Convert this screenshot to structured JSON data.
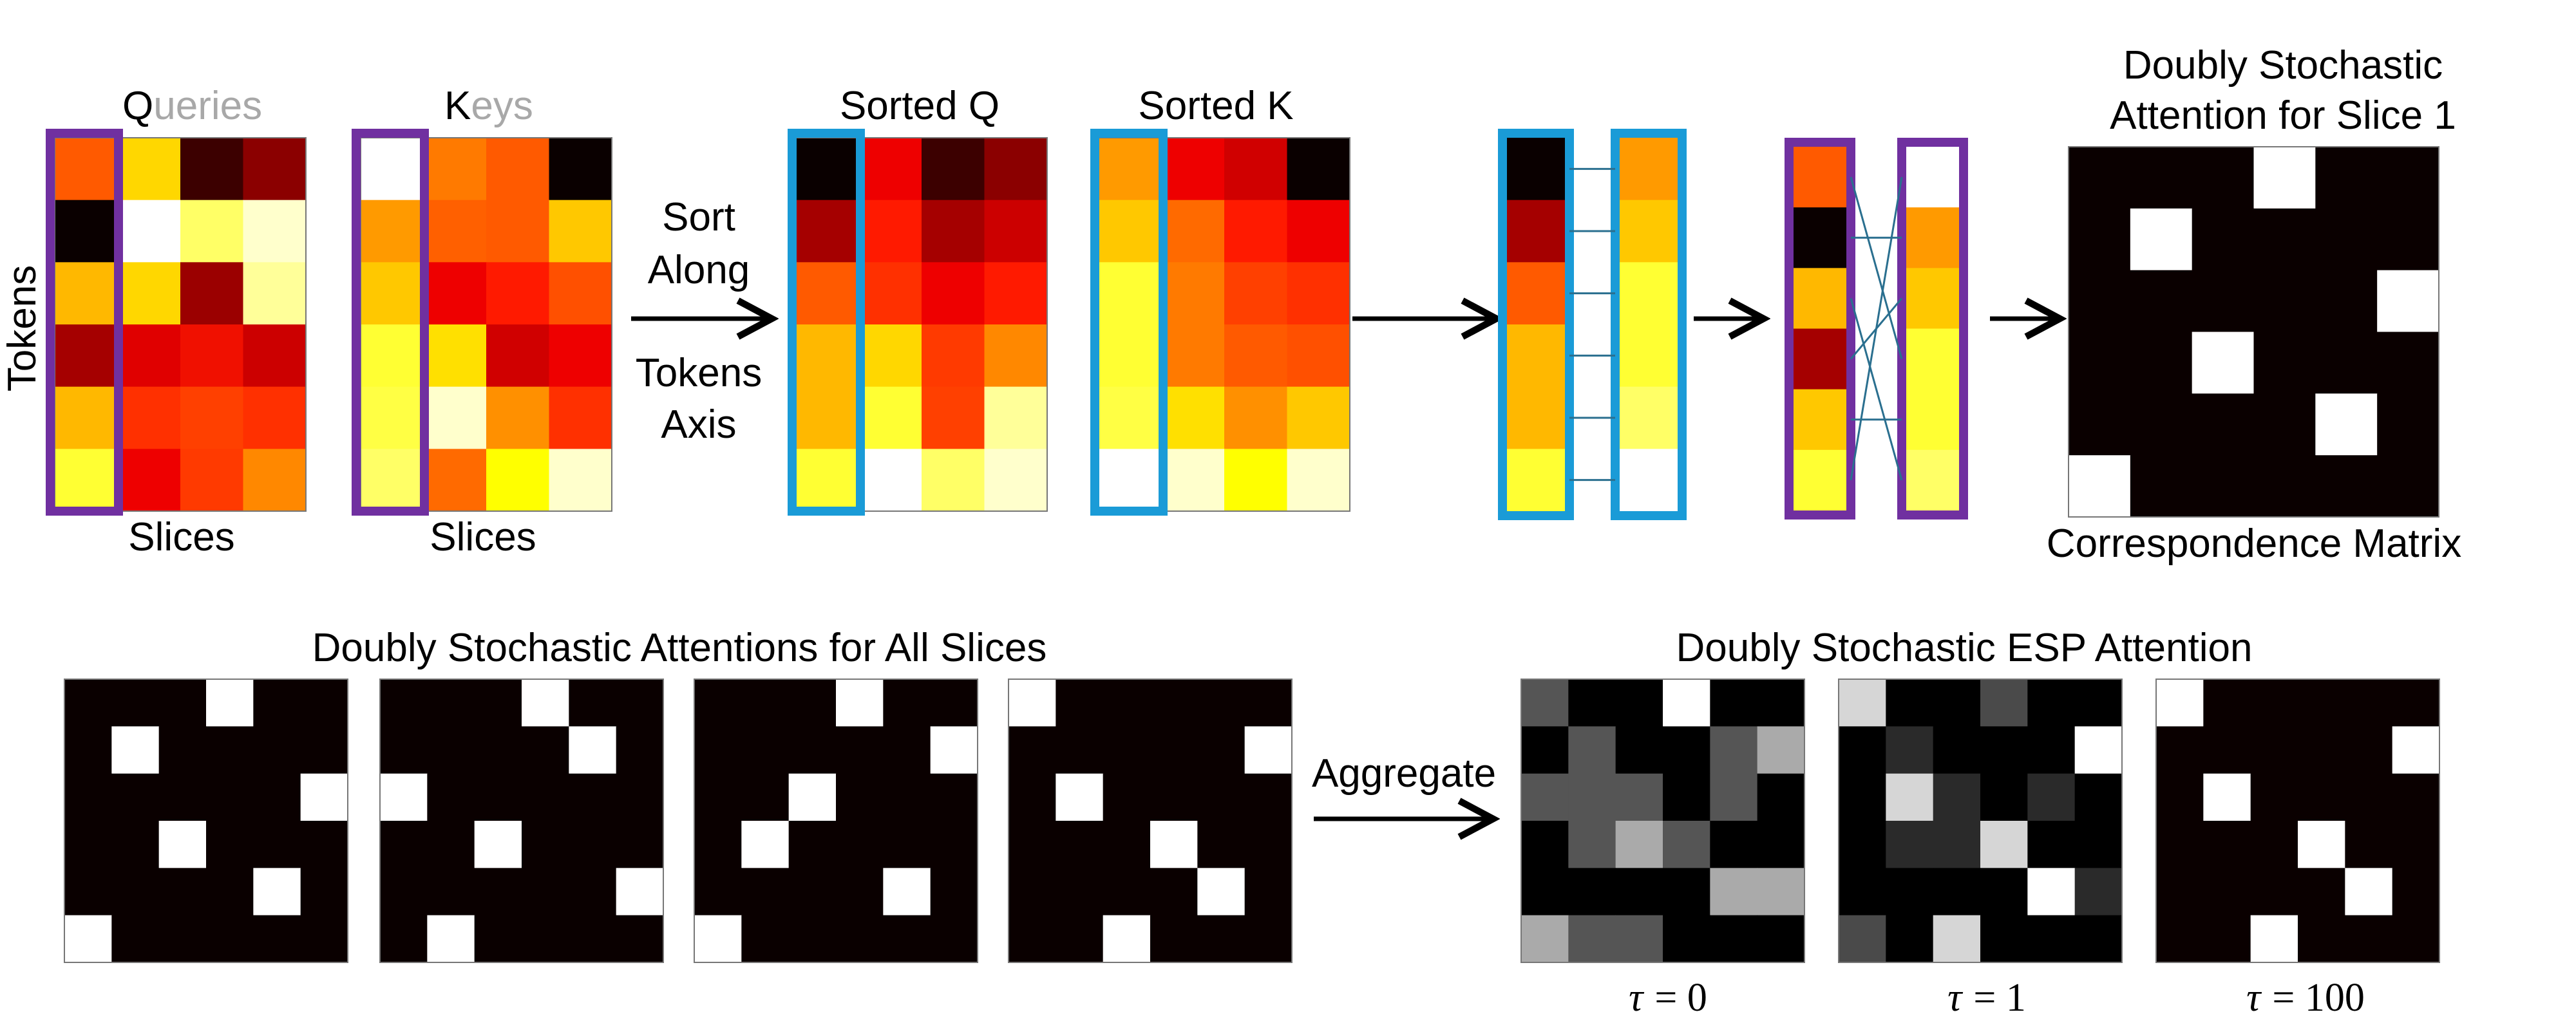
{
  "labels": {
    "queries_head": "Q",
    "queries_tail": "ueries",
    "keys_head": "K",
    "keys_tail": "eys",
    "tokens": "Tokens",
    "slices_q": "Slices",
    "slices_k": "Slices",
    "sort_line1": "Sort",
    "sort_line2": "Along",
    "sort_line3": "Tokens",
    "sort_line4": "Axis",
    "sorted_q": "Sorted Q",
    "sorted_k": "Sorted K",
    "ds_title_line1": "Doubly Stochastic",
    "ds_title_line2": "Attention for Slice 1",
    "correspondence": "Correspondence Matrix",
    "all_slices_title": "Doubly Stochastic Attentions for All Slices",
    "aggregate": "Aggregate",
    "esp_title": "Doubly Stochastic ESP Attention",
    "tau0": "= 0",
    "tau1": "= 1",
    "tau100": "= 100",
    "tau_symbol": "τ"
  },
  "colors": {
    "purple_frame": "#7030a0",
    "blue_frame": "#1a9bd7",
    "black_cell": "#0a0000",
    "white_cell": "#ffffff"
  },
  "matrices": {
    "queries": [
      [
        "#ff5a00",
        "#ffd700",
        "#3c0000",
        "#8b0000"
      ],
      [
        "#0a0000",
        "#ffffff",
        "#ffff66",
        "#ffffcc"
      ],
      [
        "#ffb800",
        "#ffd700",
        "#9b0000",
        "#ffff99"
      ],
      [
        "#a50000",
        "#e00000",
        "#f01000",
        "#cc0000"
      ],
      [
        "#ffb800",
        "#ff3000",
        "#ff4000",
        "#ff3000"
      ],
      [
        "#ffff33",
        "#ee0000",
        "#ff3a00",
        "#ff8800"
      ]
    ],
    "keys": [
      [
        "#ffffff",
        "#ff7a00",
        "#ff5a00",
        "#0a0000"
      ],
      [
        "#ff9a00",
        "#ff6000",
        "#ff5a00",
        "#ffc800"
      ],
      [
        "#ffc800",
        "#ee0000",
        "#ff1a00",
        "#ff5000"
      ],
      [
        "#ffff33",
        "#ffe000",
        "#d00000",
        "#ee0000"
      ],
      [
        "#ffff44",
        "#ffffcc",
        "#ff9000",
        "#ff3000"
      ],
      [
        "#ffff66",
        "#ff6a00",
        "#ffff00",
        "#ffffcc"
      ]
    ],
    "sorted_q": [
      [
        "#0a0000",
        "#ee0000",
        "#3c0000",
        "#8b0000"
      ],
      [
        "#a50000",
        "#ff1a00",
        "#a50000",
        "#cc0000"
      ],
      [
        "#ff5a00",
        "#ff3000",
        "#ee0000",
        "#ff1a00"
      ],
      [
        "#ffb800",
        "#ffd700",
        "#ff3a00",
        "#ff8800"
      ],
      [
        "#ffb800",
        "#ffff33",
        "#ff4000",
        "#ffff99"
      ],
      [
        "#ffff33",
        "#ffffff",
        "#ffff66",
        "#ffffcc"
      ]
    ],
    "sorted_k": [
      [
        "#ff9a00",
        "#ee0000",
        "#d00000",
        "#0a0000"
      ],
      [
        "#ffc800",
        "#ff6a00",
        "#ff1a00",
        "#ee0000"
      ],
      [
        "#ffff33",
        "#ff7a00",
        "#ff4000",
        "#ff3000"
      ],
      [
        "#ffff33",
        "#ff7a00",
        "#ff5a00",
        "#ff5000"
      ],
      [
        "#ffff44",
        "#ffe000",
        "#ff9000",
        "#ffc800"
      ],
      [
        "#ffffff",
        "#ffffcc",
        "#ffff00",
        "#ffffcc"
      ]
    ],
    "sorted_q_col": [
      "#0a0000",
      "#a50000",
      "#ff5a00",
      "#ffb800",
      "#ffb800",
      "#ffff33"
    ],
    "sorted_k_col": [
      "#ff9a00",
      "#ffc800",
      "#ffff33",
      "#ffff33",
      "#ffff66",
      "#ffffff"
    ],
    "orig_q_col": [
      "#ff5a00",
      "#0a0000",
      "#ffb800",
      "#a50000",
      "#ffc800",
      "#ffff33"
    ],
    "orig_k_col": [
      "#ffffff",
      "#ff9a00",
      "#ffc800",
      "#ffff33",
      "#ffff33",
      "#ffff66"
    ],
    "slice1_perm": [
      3,
      1,
      5,
      2,
      4,
      0
    ],
    "all_slices_perms": [
      [
        3,
        1,
        5,
        2,
        4,
        0
      ],
      [
        3,
        4,
        0,
        2,
        5,
        1
      ],
      [
        3,
        5,
        2,
        1,
        4,
        0
      ],
      [
        0,
        5,
        1,
        3,
        4,
        2
      ]
    ],
    "esp_tau0": [
      [
        "#555555",
        "#000000",
        "#000000",
        "#ffffff",
        "#000000",
        "#000000"
      ],
      [
        "#000000",
        "#555555",
        "#000000",
        "#000000",
        "#555555",
        "#aaaaaa"
      ],
      [
        "#555555",
        "#555555",
        "#555555",
        "#000000",
        "#555555",
        "#000000"
      ],
      [
        "#000000",
        "#555555",
        "#aaaaaa",
        "#555555",
        "#000000",
        "#000000"
      ],
      [
        "#000000",
        "#000000",
        "#000000",
        "#000000",
        "#aaaaaa",
        "#aaaaaa"
      ],
      [
        "#aaaaaa",
        "#555555",
        "#555555",
        "#000000",
        "#000000",
        "#000000"
      ]
    ],
    "esp_tau1": [
      [
        "#d6d6d6",
        "#000000",
        "#000000",
        "#4a4a4a",
        "#000000",
        "#000000"
      ],
      [
        "#000000",
        "#2a2a2a",
        "#000000",
        "#000000",
        "#000000",
        "#ffffff"
      ],
      [
        "#000000",
        "#d6d6d6",
        "#2a2a2a",
        "#000000",
        "#2a2a2a",
        "#000000"
      ],
      [
        "#000000",
        "#2a2a2a",
        "#2a2a2a",
        "#d6d6d6",
        "#000000",
        "#000000"
      ],
      [
        "#000000",
        "#000000",
        "#000000",
        "#000000",
        "#ffffff",
        "#2a2a2a"
      ],
      [
        "#4a4a4a",
        "#000000",
        "#d6d6d6",
        "#000000",
        "#000000",
        "#000000"
      ]
    ],
    "esp_tau100_perm": [
      0,
      5,
      1,
      3,
      4,
      2
    ]
  }
}
